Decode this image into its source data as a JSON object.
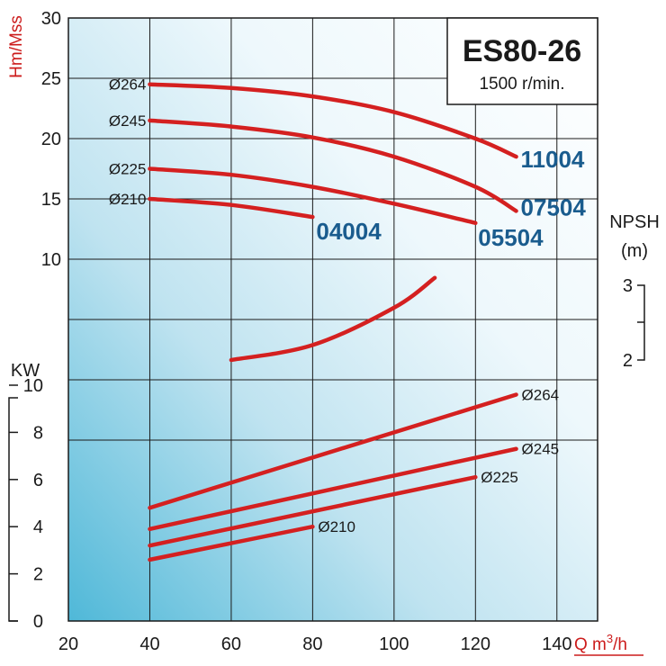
{
  "chart_data": {
    "type": "line",
    "title": "ES80-26",
    "subtitle": "1500 r/min.",
    "colors": {
      "curve": "#d42020",
      "model_label": "#1a5c8e",
      "axis_title": "#cc1c1c",
      "grid": "#1a1a1a"
    },
    "x_axis": {
      "label": "Q m³/h",
      "label_main": "Q m",
      "label_sup": "3",
      "label_tail": "/h",
      "range": [
        20,
        150
      ],
      "ticks": [
        "20",
        "40",
        "60",
        "80",
        "100",
        "120",
        "140"
      ]
    },
    "head_axis": {
      "label": "Hm/Mss",
      "range": [
        0,
        30
      ],
      "ticks": [
        "10",
        "15",
        "20",
        "25",
        "30"
      ]
    },
    "power_axis": {
      "label": "KW",
      "range": [
        0,
        10
      ],
      "ticks": [
        "0",
        "2",
        "4",
        "6",
        "8",
        "10"
      ]
    },
    "npsh_axis": {
      "label_line1": "NPSH",
      "label_line2": "(m)",
      "ticks": [
        "3",
        "2"
      ]
    },
    "head_curves": [
      {
        "diameter": "Ø264",
        "model": "11004",
        "x": [
          40,
          60,
          80,
          100,
          120,
          130
        ],
        "y": [
          24.5,
          24.2,
          23.5,
          22.2,
          20.0,
          18.5
        ]
      },
      {
        "diameter": "Ø245",
        "model": "07504",
        "x": [
          40,
          60,
          80,
          100,
          120,
          130
        ],
        "y": [
          21.5,
          21.0,
          20.1,
          18.5,
          16.0,
          14.0
        ]
      },
      {
        "diameter": "Ø225",
        "model": "05504",
        "x": [
          40,
          60,
          80,
          100,
          120
        ],
        "y": [
          17.5,
          17.0,
          16.0,
          14.6,
          13.0
        ]
      },
      {
        "diameter": "Ø210",
        "model": "04004",
        "x": [
          40,
          60,
          80
        ],
        "y": [
          15.0,
          14.5,
          13.5
        ]
      }
    ],
    "npsh_curve": {
      "x": [
        60,
        80,
        100,
        110
      ],
      "y": [
        2.0,
        2.2,
        2.7,
        3.1
      ]
    },
    "power_curves": [
      {
        "diameter": "Ø264",
        "x": [
          40,
          130
        ],
        "y": [
          4.8,
          9.6
        ]
      },
      {
        "diameter": "Ø245",
        "x": [
          40,
          130
        ],
        "y": [
          3.9,
          7.3
        ]
      },
      {
        "diameter": "Ø225",
        "x": [
          40,
          120
        ],
        "y": [
          3.2,
          6.1
        ]
      },
      {
        "diameter": "Ø210",
        "x": [
          40,
          80
        ],
        "y": [
          2.6,
          4.0
        ]
      }
    ]
  }
}
